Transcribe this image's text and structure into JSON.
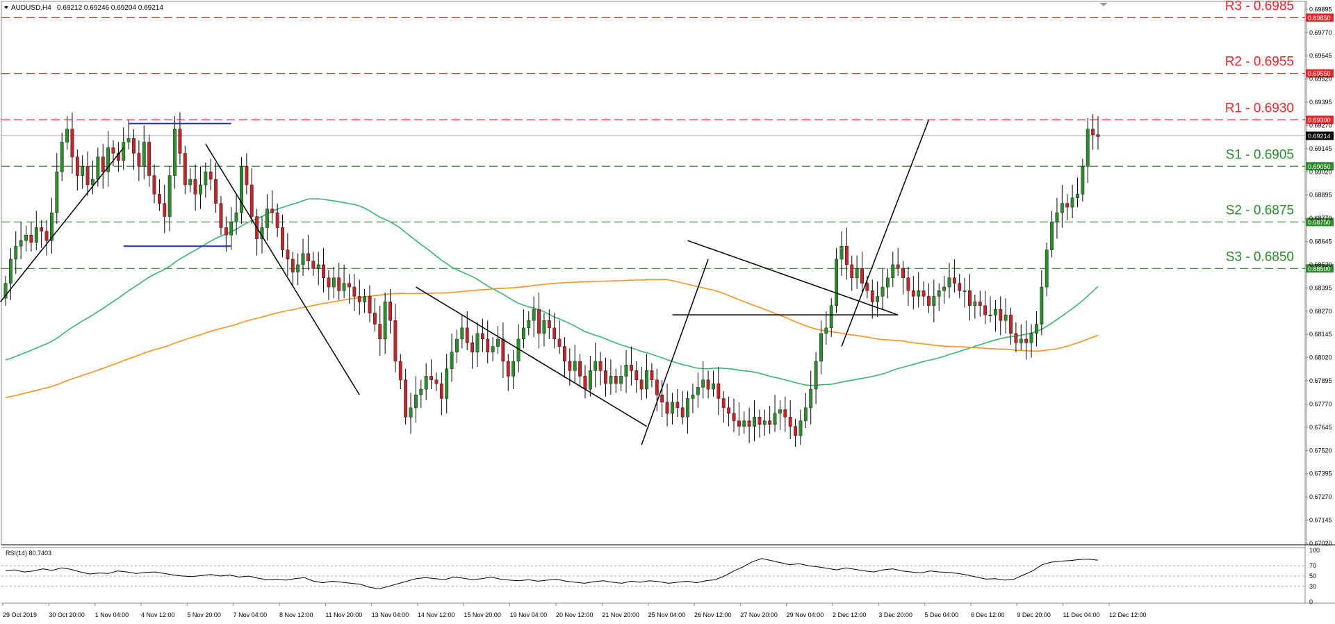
{
  "header": {
    "symbol": "AUDUSD,H4",
    "ohlc": "0.69212 0.69246 0.69204 0.69214",
    "menu_icon": "triangle-down-icon"
  },
  "colors": {
    "bull_candle": "#2e8b2e",
    "bear_candle": "#c0272d",
    "ma_fast": "#3cb371",
    "ma_slow": "#f7931e",
    "resistance": "#e8282b",
    "support": "#2d8a2d",
    "box_line": "#2233aa",
    "trend": "#000000"
  },
  "levels": {
    "resistance": [
      {
        "label": "R3 - 0.6985",
        "price": 0.6985,
        "tag": "0.69850"
      },
      {
        "label": "R2 - 0.6955",
        "price": 0.6955,
        "tag": "0.69550"
      },
      {
        "label": "R1 - 0.6930",
        "price": 0.693,
        "tag": "0.69300"
      }
    ],
    "support": [
      {
        "label": "S1 - 0.6905",
        "price": 0.6905,
        "tag": "0.69050"
      },
      {
        "label": "S2 - 0.6875",
        "price": 0.6875,
        "tag": "0.68750"
      },
      {
        "label": "S3 - 0.6850",
        "price": 0.685,
        "tag": "0.68500"
      }
    ]
  },
  "current_price": {
    "price": 0.69214,
    "tag": "0.69214"
  },
  "chart_data": {
    "type": "candlestick",
    "symbol": "AUDUSD",
    "timeframe": "H4",
    "ylim": [
      0.6702,
      0.6993
    ],
    "price_ticks": [
      "0.69895",
      "0.69770",
      "0.69645",
      "0.69520",
      "0.69395",
      "0.69270",
      "0.69145",
      "0.69020",
      "0.68895",
      "0.68770",
      "0.68645",
      "0.68520",
      "0.68395",
      "0.68270",
      "0.68145",
      "0.68020",
      "0.67895",
      "0.67770",
      "0.67645",
      "0.67520",
      "0.67395",
      "0.67270",
      "0.67145",
      "0.67020"
    ],
    "time_labels": [
      "29 Oct 2019",
      "30 Oct 20:00",
      "1 Nov 04:00",
      "4 Nov 12:00",
      "5 Nov 20:00",
      "7 Nov 04:00",
      "8 Nov 12:00",
      "11 Nov 20:00",
      "13 Nov 04:00",
      "14 Nov 12:00",
      "15 Nov 20:00",
      "19 Nov 04:00",
      "20 Nov 12:00",
      "21 Nov 20:00",
      "25 Nov 04:00",
      "26 Nov 12:00",
      "27 Nov 20:00",
      "29 Nov 04:00",
      "2 Dec 12:00",
      "3 Dec 20:00",
      "5 Dec 04:00",
      "6 Dec 12:00",
      "9 Dec 20:00",
      "11 Dec 04:00",
      "12 Dec 12:00"
    ],
    "closes": [
      0.6842,
      0.6855,
      0.6862,
      0.6865,
      0.6868,
      0.6864,
      0.6872,
      0.687,
      0.6865,
      0.688,
      0.6902,
      0.6918,
      0.6925,
      0.691,
      0.69,
      0.6905,
      0.6895,
      0.6898,
      0.691,
      0.6902,
      0.6915,
      0.6912,
      0.6908,
      0.6918,
      0.692,
      0.6912,
      0.6905,
      0.6918,
      0.69,
      0.689,
      0.6885,
      0.6878,
      0.69,
      0.6925,
      0.6912,
      0.6895,
      0.6898,
      0.689,
      0.6895,
      0.6902,
      0.6898,
      0.6885,
      0.6872,
      0.6868,
      0.6875,
      0.688,
      0.6905,
      0.6895,
      0.6878,
      0.6866,
      0.6872,
      0.6882,
      0.688,
      0.6872,
      0.686,
      0.6855,
      0.6848,
      0.6852,
      0.6858,
      0.6854,
      0.685,
      0.6852,
      0.6845,
      0.684,
      0.6845,
      0.6838,
      0.6842,
      0.684,
      0.6835,
      0.6832,
      0.6835,
      0.6826,
      0.682,
      0.6812,
      0.6832,
      0.6822,
      0.68,
      0.679,
      0.677,
      0.6775,
      0.6782,
      0.6785,
      0.6792,
      0.679,
      0.6788,
      0.678,
      0.6796,
      0.6805,
      0.6812,
      0.6818,
      0.681,
      0.6805,
      0.6815,
      0.6812,
      0.6805,
      0.6808,
      0.6812,
      0.68,
      0.6792,
      0.68,
      0.6812,
      0.6818,
      0.6822,
      0.6828,
      0.6815,
      0.6822,
      0.6818,
      0.6812,
      0.6808,
      0.68,
      0.6795,
      0.68,
      0.6792,
      0.6785,
      0.6795,
      0.68,
      0.6795,
      0.6788,
      0.6792,
      0.6788,
      0.6792,
      0.6798,
      0.6795,
      0.679,
      0.6785,
      0.6795,
      0.679,
      0.6782,
      0.6778,
      0.6772,
      0.6778,
      0.6775,
      0.677,
      0.678,
      0.6782,
      0.6786,
      0.679,
      0.6785,
      0.6788,
      0.678,
      0.6775,
      0.6772,
      0.6768,
      0.6765,
      0.6768,
      0.6765,
      0.677,
      0.6766,
      0.6768,
      0.6766,
      0.6772,
      0.6774,
      0.677,
      0.6765,
      0.676,
      0.6768,
      0.6775,
      0.6785,
      0.68,
      0.6815,
      0.6818,
      0.683,
      0.6855,
      0.6862,
      0.6852,
      0.6845,
      0.685,
      0.6842,
      0.6838,
      0.6832,
      0.6835,
      0.684,
      0.6845,
      0.6852,
      0.685,
      0.6845,
      0.6838,
      0.6835,
      0.6838,
      0.6835,
      0.683,
      0.6835,
      0.6838,
      0.684,
      0.6845,
      0.6842,
      0.6838,
      0.6838,
      0.683,
      0.6832,
      0.683,
      0.6825,
      0.6825,
      0.6828,
      0.6822,
      0.6825,
      0.6815,
      0.681,
      0.6812,
      0.681,
      0.6815,
      0.682,
      0.684,
      0.686,
      0.6875,
      0.688,
      0.6885,
      0.6883,
      0.6888,
      0.689,
      0.6905,
      0.6925,
      0.6922,
      0.6921
    ]
  },
  "rsi": {
    "label": "RSI(14) 80.7403",
    "ticks": [
      "100",
      "70",
      "50",
      "30",
      "0"
    ],
    "levels": [
      70,
      50,
      30
    ],
    "values": [
      60,
      62,
      58,
      60,
      64,
      61,
      66,
      63,
      58,
      54,
      56,
      55,
      60,
      58,
      55,
      57,
      58,
      55,
      52,
      50,
      49,
      51,
      53,
      50,
      52,
      48,
      50,
      46,
      43,
      44,
      42,
      45,
      47,
      40,
      37,
      40,
      38,
      36,
      34,
      28,
      25,
      30,
      35,
      40,
      45,
      47,
      45,
      43,
      48,
      46,
      43,
      45,
      48,
      44,
      42,
      41,
      43,
      40,
      42,
      44,
      40,
      38,
      36,
      39,
      41,
      38,
      36,
      40,
      38,
      41,
      39,
      36,
      38,
      40,
      37,
      41,
      43,
      50,
      60,
      68,
      78,
      84,
      80,
      76,
      72,
      74,
      70,
      68,
      65,
      62,
      66,
      63,
      60,
      58,
      62,
      64,
      60,
      58,
      56,
      60,
      58,
      57,
      55,
      52,
      48,
      44,
      45,
      42,
      44,
      52,
      60,
      72,
      77,
      79,
      80,
      82,
      83,
      81
    ]
  }
}
